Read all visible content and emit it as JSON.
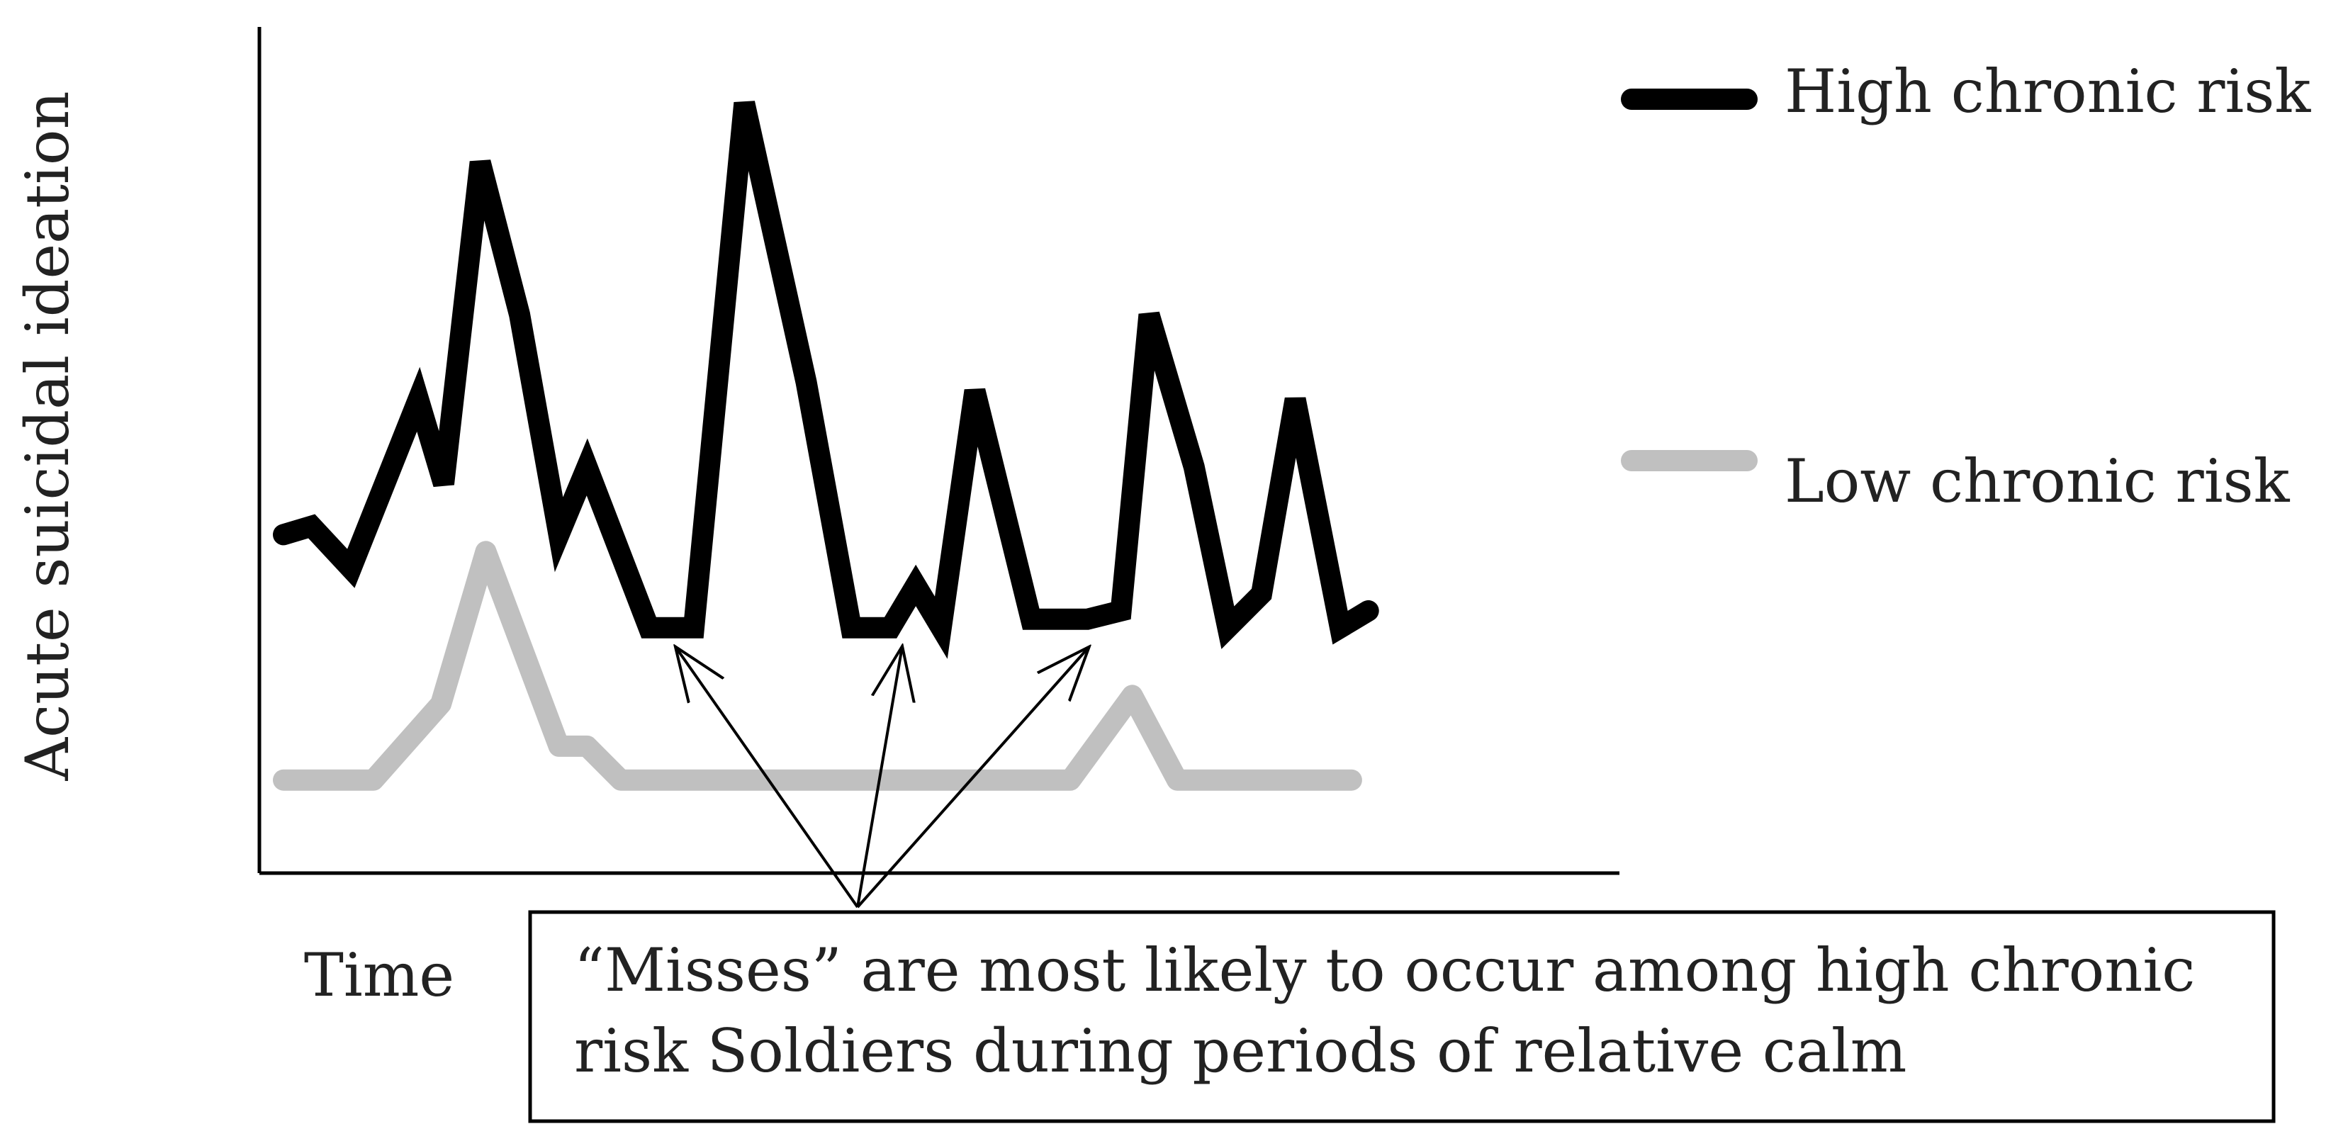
{
  "chart_data": {
    "type": "line",
    "xlabel": "Time",
    "ylabel": "Acute suicidal ideation",
    "xlim": [
      0,
      24
    ],
    "ylim": [
      0,
      10
    ],
    "grid": false,
    "legend_position": "right",
    "series": [
      {
        "name": "High chronic risk",
        "color": "#000000",
        "points": [
          [
            0.0,
            4.0
          ],
          [
            0.5,
            4.1
          ],
          [
            1.2,
            3.6
          ],
          [
            2.4,
            5.6
          ],
          [
            2.85,
            4.6
          ],
          [
            3.5,
            8.4
          ],
          [
            4.2,
            6.6
          ],
          [
            4.9,
            4.0
          ],
          [
            5.4,
            4.8
          ],
          [
            6.5,
            2.9
          ],
          [
            7.3,
            2.9
          ],
          [
            8.2,
            9.1
          ],
          [
            9.3,
            5.8
          ],
          [
            10.1,
            2.9
          ],
          [
            10.8,
            2.9
          ],
          [
            11.25,
            3.4
          ],
          [
            11.7,
            2.9
          ],
          [
            12.3,
            5.7
          ],
          [
            13.3,
            3.0
          ],
          [
            14.3,
            3.0
          ],
          [
            14.9,
            3.1
          ],
          [
            15.4,
            6.6
          ],
          [
            16.2,
            4.8
          ],
          [
            16.8,
            2.9
          ],
          [
            17.4,
            3.3
          ],
          [
            18.0,
            5.6
          ],
          [
            18.8,
            2.9
          ],
          [
            19.3,
            3.1
          ]
        ]
      },
      {
        "name": "Low chronic risk",
        "color": "#c0c0c0",
        "points": [
          [
            0.0,
            1.1
          ],
          [
            1.6,
            1.1
          ],
          [
            2.8,
            2.0
          ],
          [
            3.6,
            3.8
          ],
          [
            4.9,
            1.5
          ],
          [
            5.4,
            1.5
          ],
          [
            6.0,
            1.1
          ],
          [
            14.0,
            1.1
          ],
          [
            15.1,
            2.1
          ],
          [
            15.9,
            1.1
          ],
          [
            19.0,
            1.1
          ]
        ]
      }
    ],
    "annotation": {
      "text_line1": "“Misses” are most likely to occur among high chronic",
      "text_line2": "risk Soldiers during periods of relative calm",
      "arrow_targets_x": [
        7.0,
        11.0,
        14.3
      ]
    }
  }
}
